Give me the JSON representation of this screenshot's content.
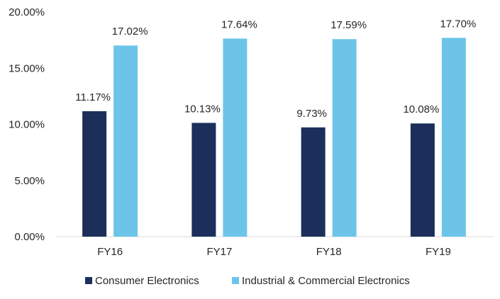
{
  "chart_data": {
    "type": "bar",
    "title": "",
    "xlabel": "",
    "ylabel": "",
    "categories": [
      "FY16",
      "FY17",
      "FY18",
      "FY19"
    ],
    "series": [
      {
        "name": "Consumer Electronics",
        "color": "#1b2f5a",
        "values": [
          11.17,
          10.13,
          9.73,
          10.08
        ],
        "labels": [
          "11.17%",
          "10.13%",
          "9.73%",
          "10.08%"
        ]
      },
      {
        "name": "Industrial & Commercial Electronics",
        "color": "#6cc5e8",
        "values": [
          17.02,
          17.64,
          17.59,
          17.7
        ],
        "labels": [
          "17.02%",
          "17.64%",
          "17.59%",
          "17.70%"
        ]
      }
    ],
    "ylim": [
      0,
      20
    ],
    "yticks": [
      0,
      5,
      10,
      15,
      20
    ],
    "ytick_labels": [
      "0.00%",
      "5.00%",
      "10.00%",
      "15.00%",
      "20.00%"
    ],
    "grid": false,
    "legend_position": "bottom"
  }
}
